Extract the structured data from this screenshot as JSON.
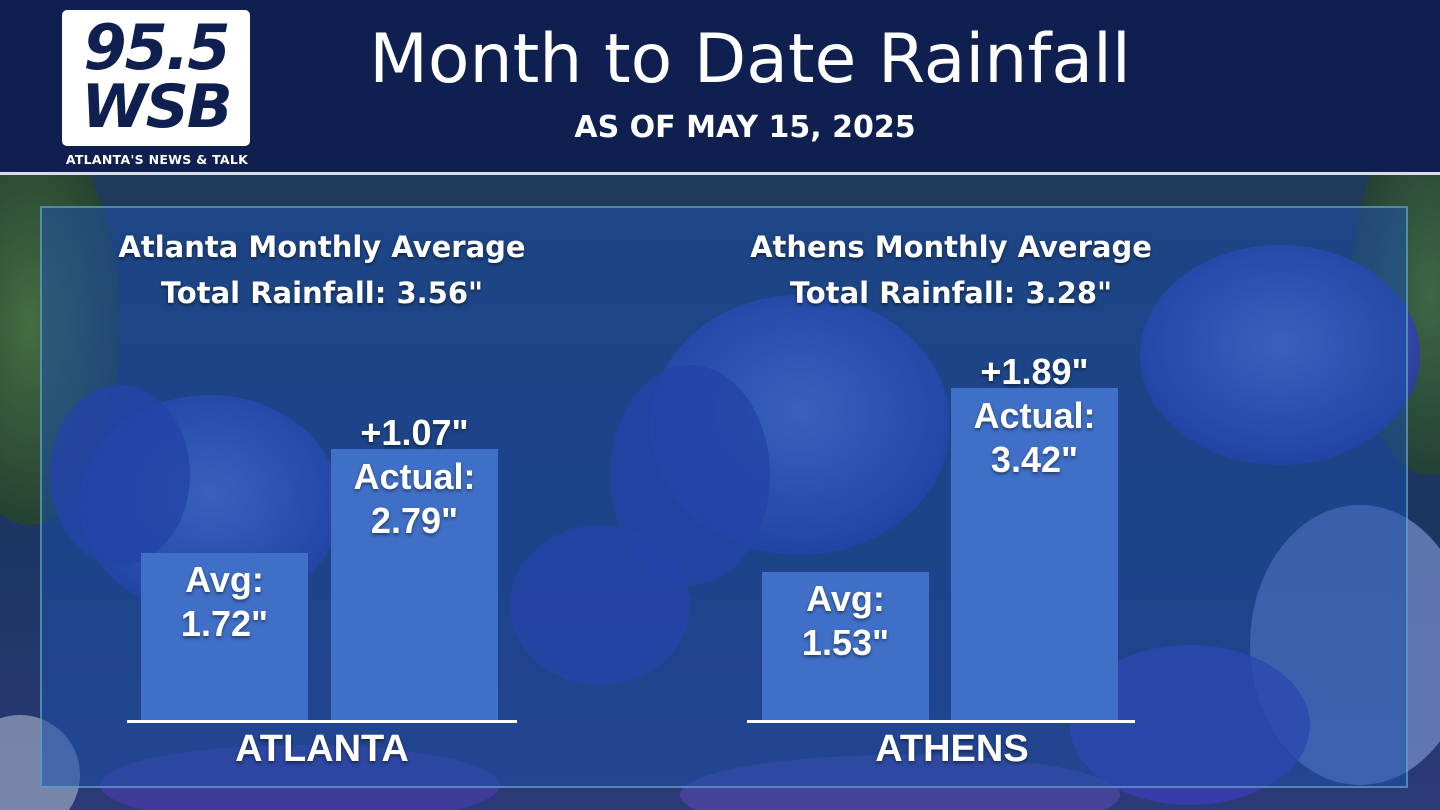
{
  "logo": {
    "line1": "95.5",
    "line2": "WSB",
    "tagline": "ATLANTA'S NEWS & TALK"
  },
  "header": {
    "title": "Month to Date Rainfall",
    "subtitle": "AS OF MAY 15, 2025"
  },
  "colors": {
    "header_bg": "#0f2050",
    "bar": "#3f6fc6",
    "panel": "#1e50aa",
    "text": "#ffffff"
  },
  "chart_data": [
    {
      "type": "bar",
      "title_line1": "Atlanta Monthly Average",
      "title_line2": "Total Rainfall: 3.56\"",
      "category": "ATLANTA",
      "monthly_average_total": 3.56,
      "bars": [
        {
          "label_line1": "Avg:",
          "label_line2": "1.72\"",
          "value": 1.72
        },
        {
          "label_line1": "Actual:",
          "label_line2": "2.79\"",
          "value": 2.79,
          "diff": "+1.07\""
        }
      ]
    },
    {
      "type": "bar",
      "title_line1": "Athens Monthly Average",
      "title_line2": "Total Rainfall: 3.28\"",
      "category": "ATHENS",
      "monthly_average_total": 3.28,
      "bars": [
        {
          "label_line1": "Avg:",
          "label_line2": "1.53\"",
          "value": 1.53
        },
        {
          "label_line1": "Actual:",
          "label_line2": "3.42\"",
          "value": 3.42,
          "diff": "+1.89\""
        }
      ]
    }
  ]
}
